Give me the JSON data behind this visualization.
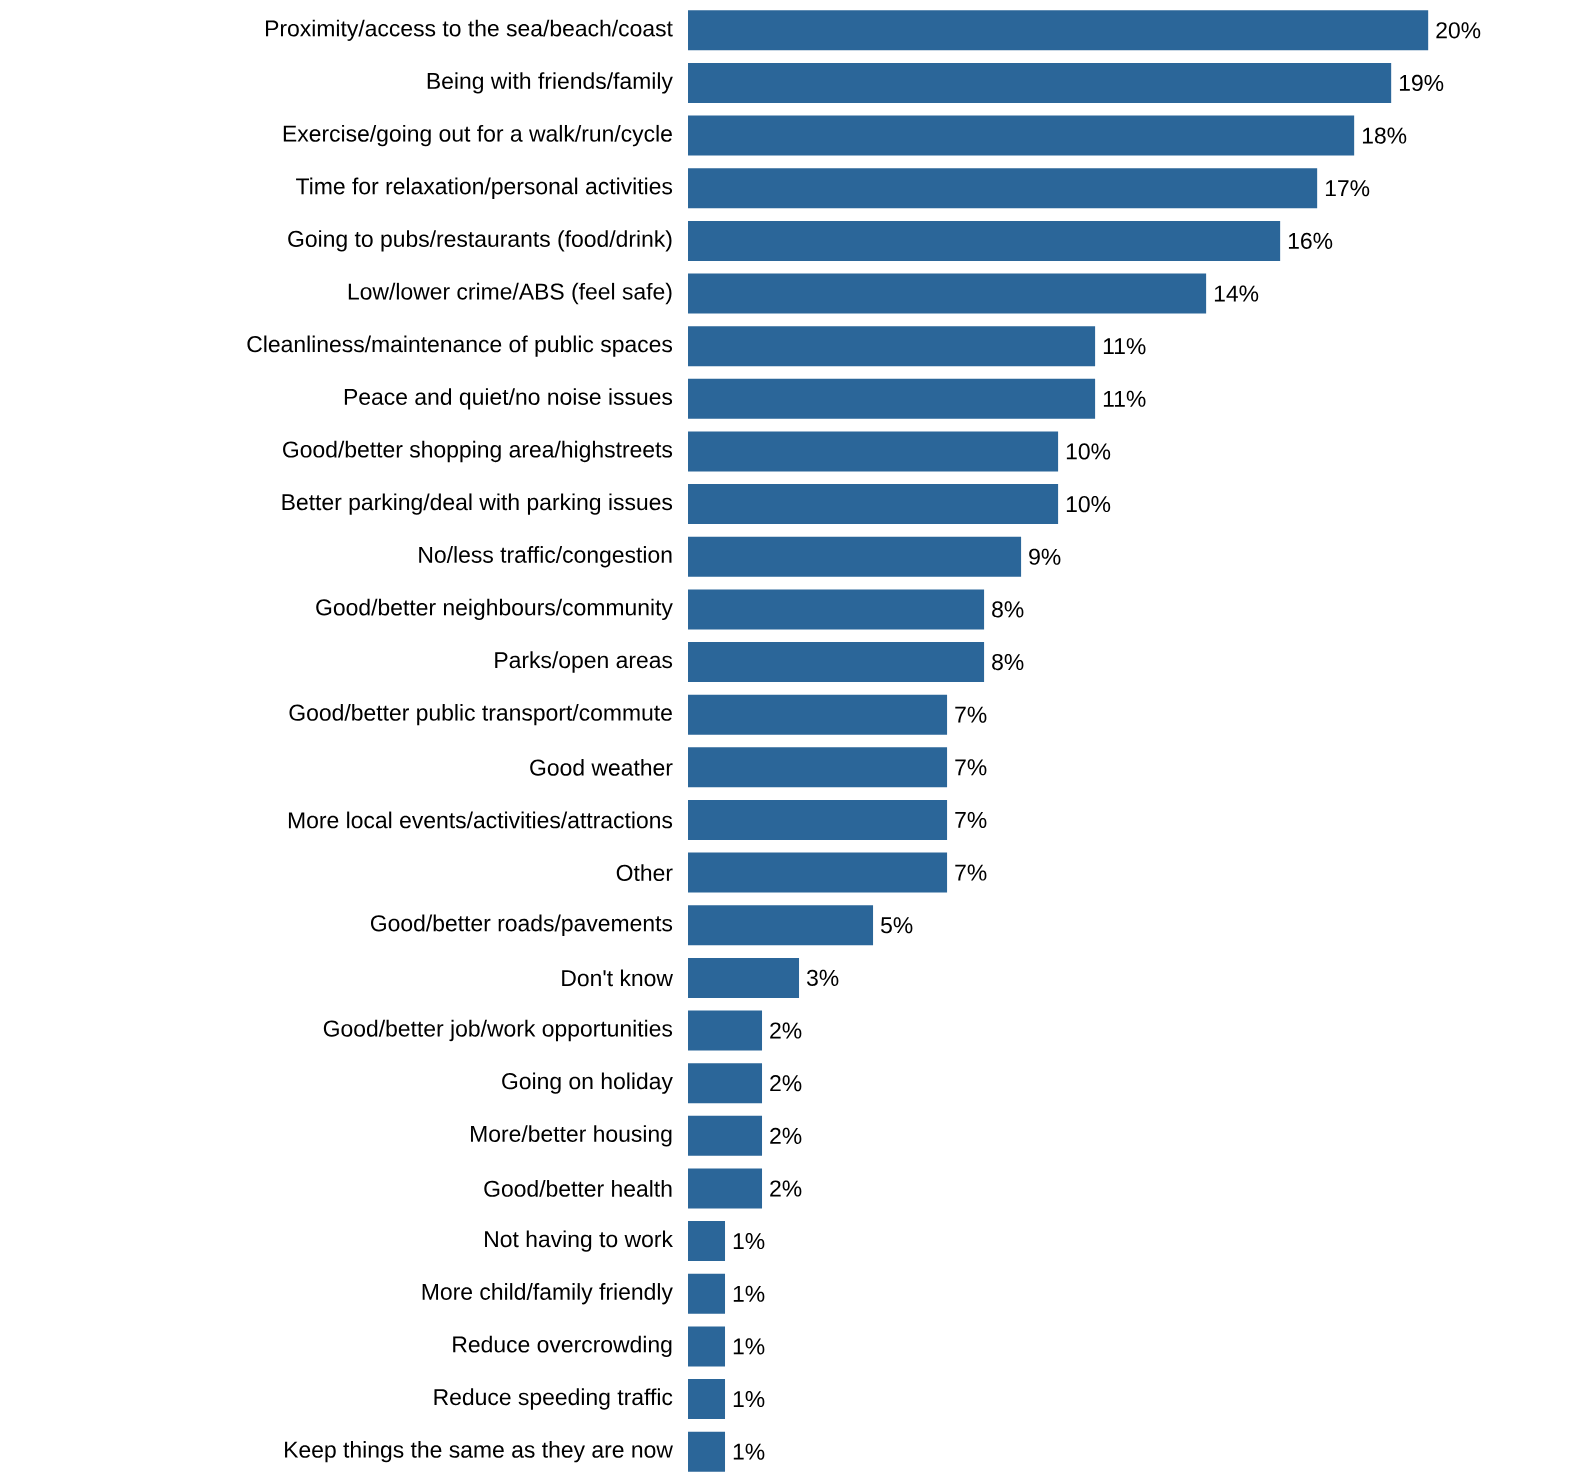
{
  "chart_data": {
    "type": "bar",
    "orientation": "horizontal",
    "color": "#2b6699",
    "categories": [
      "Proximity/access to the sea/beach/coast",
      "Being with friends/family",
      "Exercise/going out for a walk/run/cycle",
      "Time for relaxation/personal activities",
      "Going to pubs/restaurants (food/drink)",
      "Low/lower crime/ABS (feel safe)",
      "Cleanliness/maintenance of public spaces",
      "Peace and quiet/no noise issues",
      "Good/better shopping area/highstreets",
      "Better parking/deal with parking issues",
      "No/less traffic/congestion",
      "Good/better neighbours/community",
      "Parks/open areas",
      "Good/better public transport/commute",
      "Good weather",
      "More local events/activities/attractions",
      "Other",
      "Good/better roads/pavements",
      "Don't know",
      "Good/better job/work opportunities",
      "Going on holiday",
      "More/better housing",
      "Good/better health",
      "Not having to work",
      "More child/family friendly",
      "Reduce overcrowding",
      "Reduce speeding traffic",
      "Keep things the same as they are now"
    ],
    "values": [
      20,
      19,
      18,
      17,
      16,
      14,
      11,
      11,
      10,
      10,
      9,
      8,
      8,
      7,
      7,
      7,
      7,
      5,
      3,
      2,
      2,
      2,
      2,
      1,
      1,
      1,
      1,
      1
    ],
    "value_labels": [
      "20%",
      "19%",
      "18%",
      "17%",
      "16%",
      "14%",
      "11%",
      "11%",
      "10%",
      "10%",
      "9%",
      "8%",
      "8%",
      "7%",
      "7%",
      "7%",
      "7%",
      "5%",
      "3%",
      "2%",
      "2%",
      "2%",
      "2%",
      "1%",
      "1%",
      "1%",
      "1%",
      "1%"
    ]
  }
}
